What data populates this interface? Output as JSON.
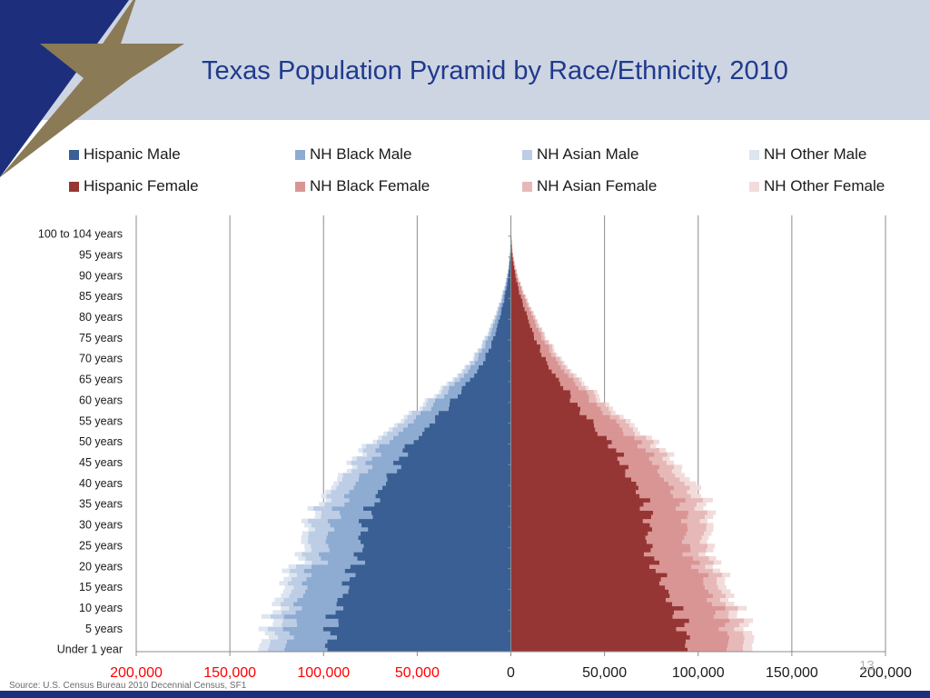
{
  "title": "Texas Population Pyramid by Race/Ethnicity, 2010",
  "source": "Source: U.S. Census Bureau 2010 Decennial Census, SF1",
  "page_number": "13",
  "colors": {
    "header_bg": "#cdd5e3",
    "title": "#203a8c",
    "star": "#8a7a55",
    "corner": "#1d2f7c",
    "footer": "#1d2f7c",
    "hispanic_male": "#3a5f94",
    "nh_black_male": "#8eabd1",
    "nh_asian_male": "#bccde5",
    "nh_other_male": "#dde5f0",
    "hispanic_female": "#963634",
    "nh_black_female": "#d99594",
    "nh_asian_female": "#e6b9b8",
    "nh_other_female": "#f2dcdb",
    "negative_tick": "#ff0000"
  },
  "legend": [
    {
      "label": "Hispanic Male",
      "color_key": "hispanic_male"
    },
    {
      "label": "NH Black Male",
      "color_key": "nh_black_male"
    },
    {
      "label": "NH Asian Male",
      "color_key": "nh_asian_male"
    },
    {
      "label": "NH Other Male",
      "color_key": "nh_other_male"
    },
    {
      "label": "Hispanic Female",
      "color_key": "hispanic_female"
    },
    {
      "label": "NH Black Female",
      "color_key": "nh_black_female"
    },
    {
      "label": "NH Asian Female",
      "color_key": "nh_asian_female"
    },
    {
      "label": "NH Other Female",
      "color_key": "nh_other_female"
    }
  ],
  "chart_data": {
    "type": "bar",
    "orientation": "horizontal",
    "stacked": true,
    "title": "Texas Population Pyramid by Race/Ethnicity, 2010",
    "xlim": [
      -200000,
      200000
    ],
    "x_ticks": [
      -200000,
      -150000,
      -100000,
      -50000,
      0,
      50000,
      100000,
      150000,
      200000
    ],
    "x_tick_labels": [
      "200,000",
      "150,000",
      "100,000",
      "50,000",
      "0",
      "50,000",
      "100,000",
      "150,000",
      "200,000"
    ],
    "y_tick_labels": [
      "Under 1 year",
      "5 years",
      "10 years",
      "15 years",
      "20 years",
      "25 years",
      "30 years",
      "35 years",
      "40 years",
      "45 years",
      "50 years",
      "55 years",
      "60 years",
      "65 years",
      "70 years",
      "75 years",
      "80 years",
      "85 years",
      "90 years",
      "95 years",
      "100 to 104 years"
    ],
    "categories_note": "Single years of age from Under 1 year (0) to 100 to 104 years (100); values estimated from the chart",
    "series": [
      {
        "name": "Hispanic Male",
        "side": "male",
        "anchors": [
          [
            0,
            98000
          ],
          [
            4,
            96000
          ],
          [
            7,
            95000
          ],
          [
            10,
            93000
          ],
          [
            13,
            90000
          ],
          [
            15,
            87000
          ],
          [
            18,
            87000
          ],
          [
            21,
            82000
          ],
          [
            25,
            80000
          ],
          [
            28,
            80000
          ],
          [
            31,
            78000
          ],
          [
            34,
            75000
          ],
          [
            37,
            71000
          ],
          [
            40,
            68000
          ],
          [
            43,
            62000
          ],
          [
            46,
            59000
          ],
          [
            48,
            57000
          ],
          [
            50,
            53000
          ],
          [
            52,
            47000
          ],
          [
            55,
            42000
          ],
          [
            58,
            35000
          ],
          [
            61,
            29000
          ],
          [
            64,
            24000
          ],
          [
            67,
            18000
          ],
          [
            70,
            14000
          ],
          [
            73,
            11000
          ],
          [
            76,
            8500
          ],
          [
            80,
            6000
          ],
          [
            84,
            3800
          ],
          [
            88,
            2100
          ],
          [
            92,
            900
          ],
          [
            96,
            300
          ],
          [
            100,
            100
          ]
        ]
      },
      {
        "name": "NH Black Male",
        "side": "male",
        "anchors": [
          [
            0,
            22000
          ],
          [
            5,
            22000
          ],
          [
            10,
            22000
          ],
          [
            15,
            22000
          ],
          [
            18,
            23000
          ],
          [
            22,
            19000
          ],
          [
            26,
            18000
          ],
          [
            30,
            17000
          ],
          [
            35,
            16500
          ],
          [
            40,
            15500
          ],
          [
            45,
            15000
          ],
          [
            50,
            13500
          ],
          [
            55,
            11000
          ],
          [
            60,
            8000
          ],
          [
            65,
            5500
          ],
          [
            70,
            4000
          ],
          [
            75,
            2800
          ],
          [
            80,
            1800
          ],
          [
            85,
            1000
          ],
          [
            90,
            400
          ],
          [
            95,
            100
          ],
          [
            100,
            30
          ]
        ]
      },
      {
        "name": "NH Asian Male",
        "side": "male",
        "anchors": [
          [
            0,
            9000
          ],
          [
            5,
            8000
          ],
          [
            10,
            7000
          ],
          [
            15,
            7500
          ],
          [
            20,
            8000
          ],
          [
            25,
            9500
          ],
          [
            30,
            10500
          ],
          [
            35,
            10000
          ],
          [
            40,
            9000
          ],
          [
            45,
            8000
          ],
          [
            50,
            6500
          ],
          [
            55,
            5000
          ],
          [
            60,
            4000
          ],
          [
            65,
            3000
          ],
          [
            70,
            2000
          ],
          [
            75,
            1300
          ],
          [
            80,
            800
          ],
          [
            85,
            400
          ],
          [
            90,
            150
          ],
          [
            95,
            50
          ],
          [
            100,
            10
          ]
        ]
      },
      {
        "name": "NH Other Male",
        "side": "male",
        "anchors": [
          [
            0,
            5000
          ],
          [
            5,
            5000
          ],
          [
            10,
            4500
          ],
          [
            15,
            4500
          ],
          [
            20,
            4000
          ],
          [
            25,
            3500
          ],
          [
            30,
            3500
          ],
          [
            35,
            3000
          ],
          [
            40,
            2800
          ],
          [
            45,
            2500
          ],
          [
            50,
            2200
          ],
          [
            55,
            1800
          ],
          [
            60,
            1400
          ],
          [
            65,
            1000
          ],
          [
            70,
            700
          ],
          [
            75,
            500
          ],
          [
            80,
            300
          ],
          [
            85,
            150
          ],
          [
            90,
            60
          ],
          [
            95,
            20
          ],
          [
            100,
            5
          ]
        ]
      },
      {
        "name": "Hispanic Female",
        "side": "female",
        "anchors": [
          [
            0,
            95000
          ],
          [
            4,
            93000
          ],
          [
            7,
            91000
          ],
          [
            10,
            88000
          ],
          [
            13,
            84000
          ],
          [
            15,
            82000
          ],
          [
            18,
            80000
          ],
          [
            21,
            76000
          ],
          [
            24,
            74000
          ],
          [
            27,
            73000
          ],
          [
            30,
            74000
          ],
          [
            33,
            73000
          ],
          [
            36,
            71000
          ],
          [
            40,
            66000
          ],
          [
            43,
            61000
          ],
          [
            46,
            59000
          ],
          [
            48,
            56000
          ],
          [
            50,
            53000
          ],
          [
            52,
            47000
          ],
          [
            55,
            43000
          ],
          [
            58,
            36000
          ],
          [
            61,
            32000
          ],
          [
            64,
            27000
          ],
          [
            67,
            22000
          ],
          [
            70,
            18000
          ],
          [
            73,
            15000
          ],
          [
            76,
            12000
          ],
          [
            80,
            9000
          ],
          [
            84,
            6000
          ],
          [
            88,
            3500
          ],
          [
            92,
            1700
          ],
          [
            96,
            600
          ],
          [
            100,
            200
          ]
        ]
      },
      {
        "name": "NH Black Female",
        "side": "female",
        "anchors": [
          [
            0,
            22000
          ],
          [
            5,
            22000
          ],
          [
            10,
            22000
          ],
          [
            15,
            22000
          ],
          [
            18,
            23000
          ],
          [
            22,
            21000
          ],
          [
            26,
            20000
          ],
          [
            30,
            20000
          ],
          [
            35,
            19000
          ],
          [
            40,
            18000
          ],
          [
            45,
            17000
          ],
          [
            50,
            15500
          ],
          [
            55,
            13000
          ],
          [
            60,
            10000
          ],
          [
            65,
            7500
          ],
          [
            70,
            5500
          ],
          [
            75,
            4000
          ],
          [
            80,
            2800
          ],
          [
            85,
            1800
          ],
          [
            90,
            800
          ],
          [
            95,
            250
          ],
          [
            100,
            80
          ]
        ]
      },
      {
        "name": "NH Asian Female",
        "side": "female",
        "anchors": [
          [
            0,
            8500
          ],
          [
            5,
            8000
          ],
          [
            10,
            7000
          ],
          [
            15,
            7000
          ],
          [
            20,
            7500
          ],
          [
            25,
            9000
          ],
          [
            30,
            10000
          ],
          [
            35,
            9500
          ],
          [
            40,
            8500
          ],
          [
            45,
            7500
          ],
          [
            50,
            6500
          ],
          [
            55,
            5000
          ],
          [
            60,
            4000
          ],
          [
            65,
            3000
          ],
          [
            70,
            2200
          ],
          [
            75,
            1500
          ],
          [
            80,
            1000
          ],
          [
            85,
            500
          ],
          [
            90,
            200
          ],
          [
            95,
            60
          ],
          [
            100,
            15
          ]
        ]
      },
      {
        "name": "NH Other Female",
        "side": "female",
        "anchors": [
          [
            0,
            5000
          ],
          [
            5,
            5000
          ],
          [
            10,
            4500
          ],
          [
            15,
            4500
          ],
          [
            20,
            4000
          ],
          [
            25,
            3800
          ],
          [
            30,
            3800
          ],
          [
            35,
            5000
          ],
          [
            40,
            6000
          ],
          [
            45,
            4000
          ],
          [
            50,
            3000
          ],
          [
            55,
            2500
          ],
          [
            60,
            2000
          ],
          [
            65,
            1500
          ],
          [
            70,
            1000
          ],
          [
            75,
            700
          ],
          [
            80,
            500
          ],
          [
            85,
            300
          ],
          [
            90,
            120
          ],
          [
            95,
            40
          ],
          [
            100,
            10
          ]
        ]
      }
    ]
  }
}
